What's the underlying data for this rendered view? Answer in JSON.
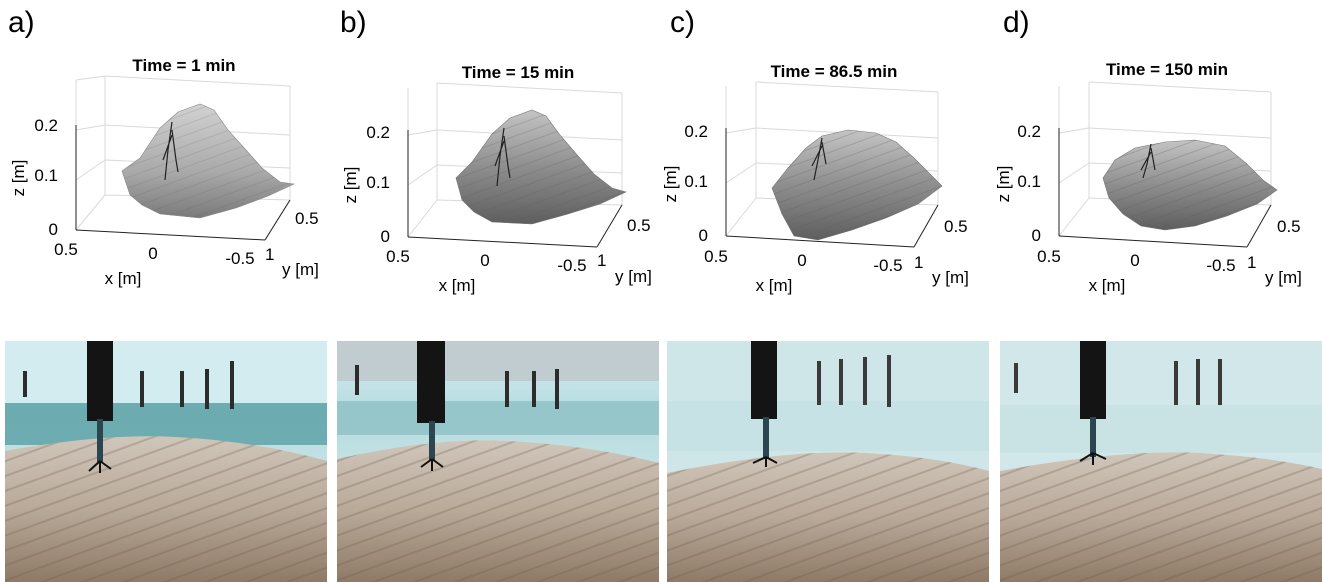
{
  "figure": {
    "panels": [
      {
        "label": "a)",
        "title": "Time = 1 min",
        "zlabel": "z [m]",
        "xlabel": "x [m]",
        "ylabel": "y [m]",
        "zticks": [
          "0.2",
          "0.1",
          "0"
        ],
        "xticks": [
          "0.5",
          "0",
          "-0.5"
        ],
        "yticks": [
          "0.5",
          "1"
        ]
      },
      {
        "label": "b)",
        "title": "Time = 15 min",
        "zlabel": "z [m]",
        "xlabel": "x [m]",
        "ylabel": "y [m]",
        "zticks": [
          "0.2",
          "0.1",
          "0"
        ],
        "xticks": [
          "0.5",
          "0",
          "-0.5"
        ],
        "yticks": [
          "0.5",
          "1"
        ]
      },
      {
        "label": "c)",
        "title": "Time = 86.5 min",
        "zlabel": "z [m]",
        "xlabel": "x [m]",
        "ylabel": "y [m]",
        "zticks": [
          "0.2",
          "0.1",
          "0"
        ],
        "xticks": [
          "0.5",
          "0",
          "-0.5"
        ],
        "yticks": [
          "0.5",
          "1"
        ]
      },
      {
        "label": "d)",
        "title": "Time = 150 min",
        "zlabel": "z [m]",
        "xlabel": "x [m]",
        "ylabel": "y [m]",
        "zticks": [
          "0.2",
          "0.1",
          "0"
        ],
        "xticks": [
          "0.5",
          "0",
          "-0.5"
        ],
        "yticks": [
          "0.5",
          "1"
        ]
      }
    ]
  },
  "colors": {
    "water_top": "#cfe6ea",
    "water_band": "#5fa8ae",
    "sand_light": "#d8cfc2",
    "sand_dark": "#8f7c68",
    "surface_light": "#cfcfcf",
    "surface_dark": "#6e6e6e"
  }
}
